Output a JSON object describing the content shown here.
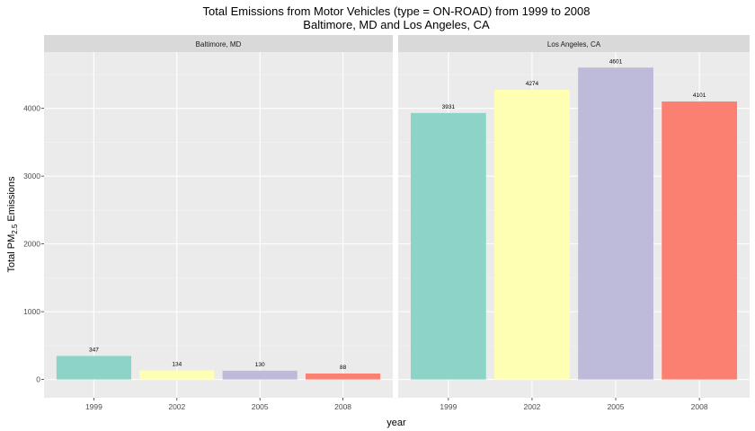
{
  "chart_data": {
    "type": "bar",
    "title_line1": "Total Emissions from Motor Vehicles (type = ON-ROAD) from 1999 to 2008",
    "title_line2": "Baltimore, MD and Los Angeles, CA",
    "xlabel": "year",
    "ylabel": {
      "prefix": "Total PM",
      "subscript": "2.5",
      "suffix": " Emissions"
    },
    "categories": [
      "1999",
      "2002",
      "2005",
      "2008"
    ],
    "colors": [
      "#8DD3C7",
      "#FFFFB3",
      "#BEBADA",
      "#FB8072"
    ],
    "ylim": [
      -270,
      4830
    ],
    "yticks": [
      0,
      1000,
      2000,
      3000,
      4000
    ],
    "grid": true,
    "panel_background": "#EBEBEB",
    "strip_background": "#D9D9D9",
    "facets": [
      {
        "name": "Baltimore, MD",
        "values": [
          347,
          134,
          130,
          88
        ],
        "labels": [
          "347",
          "134",
          "130",
          "88"
        ]
      },
      {
        "name": "Los Angeles, CA",
        "values": [
          3931,
          4274,
          4601,
          4101
        ],
        "labels": [
          "3931",
          "4274",
          "4601",
          "4101"
        ]
      }
    ]
  }
}
